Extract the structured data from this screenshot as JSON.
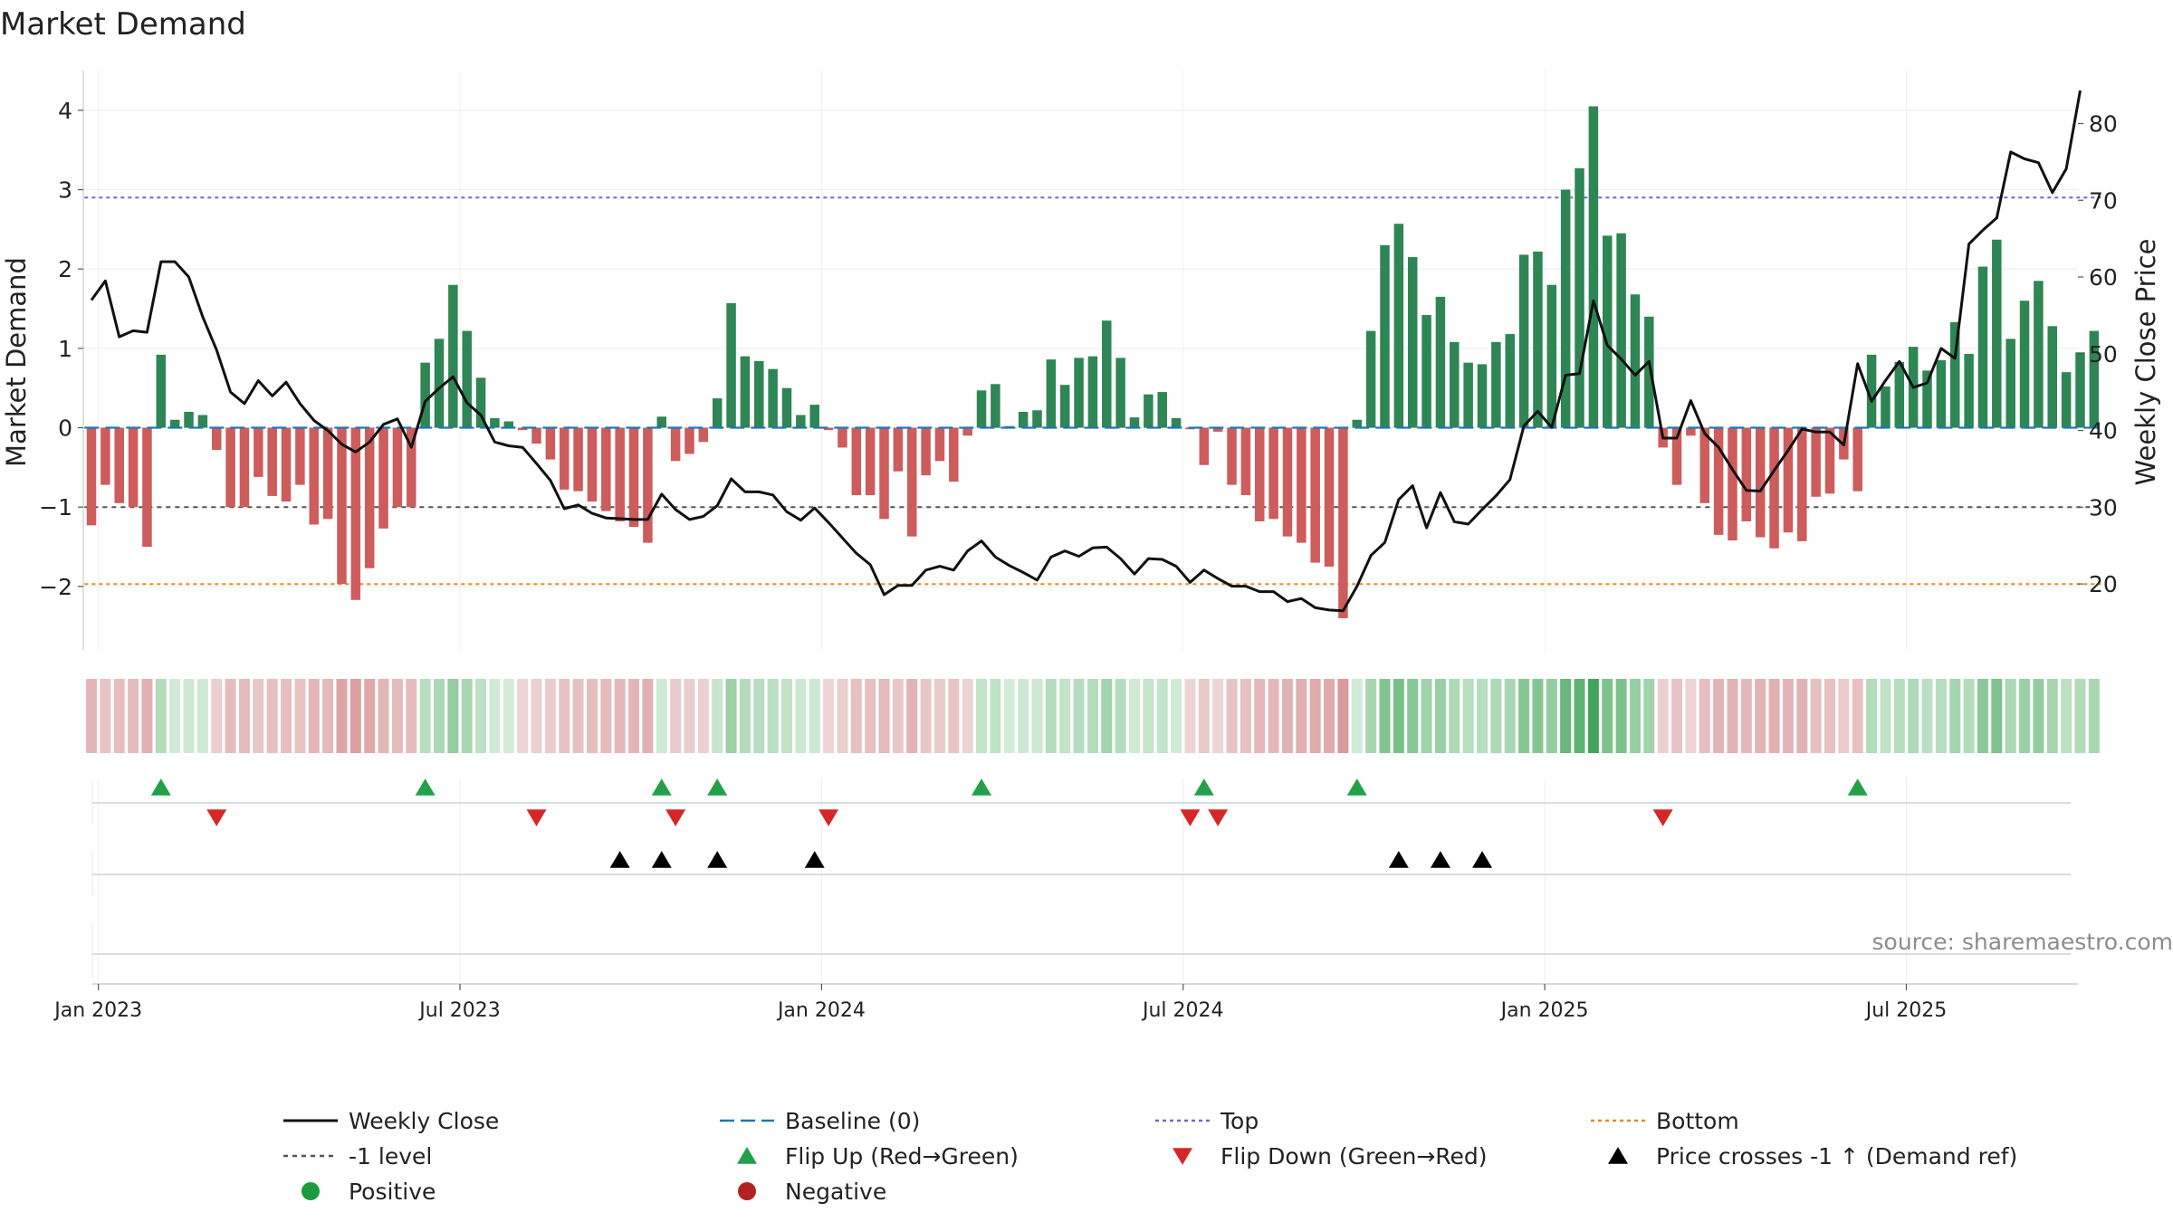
{
  "chart_data": {
    "type": "bar",
    "title": "Market Demand",
    "source": "source: sharemaestro.com",
    "ylabel_left": "Market Demand",
    "ylabel_right": "Weekly Close Price",
    "ylim_left": [
      -2.8,
      4.5
    ],
    "ylim_right": [
      11.4,
      86.9
    ],
    "left_ticks": [
      4,
      3,
      2,
      1,
      0,
      -1,
      -2
    ],
    "left_tick_labels": [
      "4",
      "3",
      "2",
      "1",
      "0",
      "−1",
      "−2"
    ],
    "right_ticks": [
      80,
      70,
      60,
      50,
      40,
      30,
      20
    ],
    "right_tick_labels": [
      "80",
      "70",
      "60",
      "50",
      "40",
      "30",
      "20"
    ],
    "x_tick_labels": [
      "Jan 2023",
      "Jul 2023",
      "Jan 2024",
      "Jul 2024",
      "Jan 2025",
      "Jul 2025"
    ],
    "x_tick_weeks": [
      0.5,
      26.5,
      52.5,
      78.5,
      104.5,
      130.5
    ],
    "reference_lines": {
      "top": 2.9,
      "bottom": -1.97,
      "minus_one": -1.0,
      "baseline": 0
    },
    "demand": [
      -1.23,
      -0.72,
      -0.95,
      -1.0,
      -1.5,
      0.92,
      0.1,
      0.2,
      0.16,
      -0.28,
      -1.0,
      -1.0,
      -0.62,
      -0.86,
      -0.93,
      -0.72,
      -1.22,
      -1.15,
      -1.97,
      -2.17,
      -1.77,
      -1.27,
      -1.0,
      -1.0,
      0.82,
      1.12,
      1.8,
      1.22,
      0.63,
      0.12,
      0.08,
      -0.03,
      -0.2,
      -0.4,
      -0.78,
      -0.8,
      -0.93,
      -1.05,
      -1.18,
      -1.25,
      -1.45,
      0.14,
      -0.42,
      -0.33,
      -0.18,
      0.37,
      1.57,
      0.9,
      0.84,
      0.74,
      0.5,
      0.16,
      0.29,
      -0.03,
      -0.25,
      -0.85,
      -0.85,
      -1.15,
      -0.55,
      -1.37,
      -0.6,
      -0.42,
      -0.68,
      -0.1,
      0.47,
      0.55,
      0.02,
      0.2,
      0.22,
      0.86,
      0.54,
      0.88,
      0.9,
      1.35,
      0.88,
      0.13,
      0.42,
      0.45,
      0.12,
      -0.02,
      -0.47,
      -0.05,
      -0.72,
      -0.85,
      -1.18,
      -1.15,
      -1.37,
      -1.45,
      -1.7,
      -1.75,
      -2.4,
      0.1,
      1.22,
      2.3,
      2.57,
      2.15,
      1.42,
      1.65,
      1.08,
      0.82,
      0.8,
      1.08,
      1.18,
      2.18,
      2.22,
      1.8,
      3.0,
      3.27,
      4.05,
      2.42,
      2.45,
      1.68,
      1.4,
      -0.25,
      -0.72,
      -0.1,
      -0.95,
      -1.35,
      -1.42,
      -1.18,
      -1.38,
      -1.52,
      -1.32,
      -1.43,
      -0.87,
      -0.83,
      -0.4,
      -0.8,
      0.92,
      0.52,
      0.83,
      1.02,
      0.72,
      0.85,
      1.33,
      0.93,
      2.03,
      2.37,
      1.12,
      1.6,
      1.85,
      1.28,
      0.7,
      0.95,
      1.22
    ],
    "weekly_close": [
      57,
      59.5,
      52.2,
      53,
      52.8,
      62,
      62,
      60,
      54.8,
      50.5,
      45,
      43.5,
      46.5,
      44.5,
      46.3,
      43.5,
      41.3,
      40,
      38.2,
      37.2,
      38.5,
      40.8,
      41.5,
      37.8,
      43.8,
      45.5,
      47,
      43.6,
      42,
      38.5,
      38,
      37.8,
      35.7,
      33.5,
      29.8,
      30.3,
      29.2,
      28.6,
      28.5,
      28.4,
      28.4,
      31.7,
      29.7,
      28.4,
      28.8,
      30.2,
      33.7,
      32,
      32,
      31.6,
      29.4,
      28.3,
      29.9,
      28,
      26,
      24,
      22.5,
      18.6,
      19.8,
      19.8,
      21.8,
      22.3,
      21.8,
      24.3,
      25.6,
      23.5,
      22.4,
      21.5,
      20.5,
      23.5,
      24.3,
      23.6,
      24.7,
      24.8,
      23.3,
      21.3,
      23.3,
      23.2,
      22.3,
      20.2,
      21.8,
      20.7,
      19.7,
      19.7,
      19,
      19,
      17.7,
      18.1,
      16.9,
      16.6,
      16.5,
      19.7,
      23.7,
      25.4,
      31,
      32.8,
      27.3,
      31.9,
      28.1,
      27.8,
      29.7,
      31.5,
      33.6,
      40.6,
      42.5,
      40.4,
      47.2,
      47.4,
      56.9,
      51.1,
      49.3,
      47.2,
      49,
      39,
      39,
      43.9,
      39.6,
      37.8,
      34.9,
      32.2,
      32.1,
      34.8,
      37.4,
      40.2,
      39.8,
      39.8,
      38.1,
      48.7,
      43.8,
      46.5,
      49,
      45.6,
      46.2,
      50.7,
      49.4,
      64.3,
      66.1,
      67.7,
      76.3,
      75.4,
      74.9,
      71,
      74.1,
      84.3
    ],
    "heatmap": {
      "label": "demand intensity strip",
      "colors": {
        "negative_light": "#eed5d5",
        "negative_dark": "#d99a9a",
        "positive_light": "#d4ecd8",
        "positive_dark": "#43a55a"
      }
    },
    "flip_up_weeks": [
      5,
      24,
      41,
      45,
      64,
      80,
      91,
      127
    ],
    "flip_down_weeks": [
      9,
      32,
      42,
      53,
      79,
      81,
      113
    ],
    "price_cross_weeks": [
      38,
      41,
      45,
      52,
      94,
      97,
      100
    ],
    "legend": [
      {
        "key": "weekly_close",
        "label": "Weekly Close"
      },
      {
        "key": "baseline",
        "label": "Baseline (0)"
      },
      {
        "key": "top",
        "label": "Top"
      },
      {
        "key": "bottom",
        "label": "Bottom"
      },
      {
        "key": "minus_one",
        "label": "-1 level"
      },
      {
        "key": "flip_up",
        "label": "Flip Up (Red→Green)"
      },
      {
        "key": "flip_down",
        "label": "Flip Down (Green→Red)"
      },
      {
        "key": "price_cross",
        "label": "Price crosses -1 ↑ (Demand ref)"
      },
      {
        "key": "positive",
        "label": "Positive"
      },
      {
        "key": "negative",
        "label": "Negative"
      }
    ],
    "colors": {
      "positive": "#2e8655",
      "negative": "#cd5c5c",
      "line": "#111111",
      "baseline": "#1f77b4",
      "top": "#6a6ac8",
      "bottom": "#e08a1e",
      "minus_one": "#555555",
      "flip_up": "#22a04a",
      "flip_down": "#d62728",
      "price_cross": "#000000",
      "positive_dot": "#1e9a3e",
      "negative_dot": "#b22222"
    }
  }
}
